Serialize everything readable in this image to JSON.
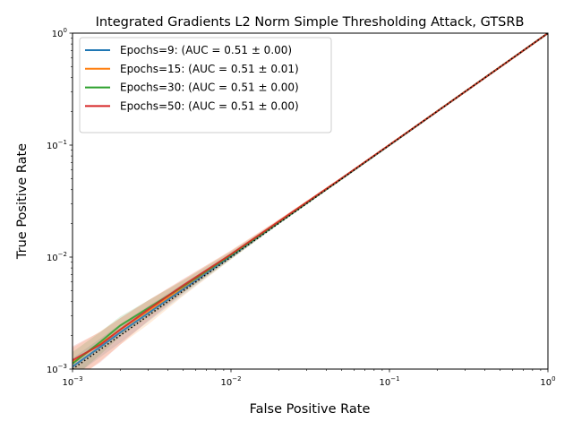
{
  "chart_data": {
    "type": "line",
    "title": "Integrated Gradients L2 Norm Simple Thresholding Attack, GTSRB",
    "xlabel": "False Positive Rate",
    "ylabel": "True Positive Rate",
    "xscale": "log",
    "yscale": "log",
    "xlim": [
      0.001,
      1
    ],
    "ylim": [
      0.001,
      1
    ],
    "x_ticks": [
      {
        "value": 0.001,
        "base": "10",
        "exp": "−3"
      },
      {
        "value": 0.01,
        "base": "10",
        "exp": "−2"
      },
      {
        "value": 0.1,
        "base": "10",
        "exp": "−1"
      },
      {
        "value": 1,
        "base": "10",
        "exp": "0"
      }
    ],
    "y_ticks": [
      {
        "value": 0.001,
        "base": "10",
        "exp": "−3"
      },
      {
        "value": 0.01,
        "base": "10",
        "exp": "−2"
      },
      {
        "value": 0.1,
        "base": "10",
        "exp": "−1"
      },
      {
        "value": 1,
        "base": "10",
        "exp": "0"
      }
    ],
    "legend_position": "top-left",
    "chance_line": {
      "style": "dotted",
      "color": "#000000",
      "x": [
        0.001,
        1
      ],
      "y": [
        0.001,
        1
      ]
    },
    "series": [
      {
        "name": "Epochs=9: (AUC = 0.51 ± 0.00)",
        "color": "#1f77b4",
        "x": [
          0.001,
          0.0015,
          0.002,
          0.003,
          0.005,
          0.01,
          0.02,
          0.05,
          0.1,
          0.2,
          0.5,
          1
        ],
        "y": [
          0.00105,
          0.00158,
          0.00212,
          0.00315,
          0.0052,
          0.0102,
          0.0203,
          0.0502,
          0.1,
          0.2,
          0.5,
          1
        ],
        "band": [
          0.0002,
          0.0003,
          0.0004,
          0.0005,
          0.0006,
          0.0006,
          0.0006,
          0.001,
          0.0015,
          0.002,
          0.003,
          0.0
        ]
      },
      {
        "name": "Epochs=15: (AUC = 0.51 ± 0.01)",
        "color": "#ff7f0e",
        "x": [
          0.001,
          0.0015,
          0.002,
          0.003,
          0.005,
          0.01,
          0.02,
          0.05,
          0.1,
          0.2,
          0.5,
          1
        ],
        "y": [
          0.00115,
          0.00168,
          0.00225,
          0.0033,
          0.0054,
          0.0105,
          0.0207,
          0.0505,
          0.1005,
          0.2005,
          0.5,
          1
        ],
        "band": [
          0.0004,
          0.0005,
          0.0006,
          0.0008,
          0.0009,
          0.001,
          0.001,
          0.0015,
          0.002,
          0.003,
          0.004,
          0.0
        ]
      },
      {
        "name": "Epochs=30: (AUC = 0.51 ± 0.00)",
        "color": "#2ca02c",
        "x": [
          0.001,
          0.0015,
          0.002,
          0.003,
          0.005,
          0.01,
          0.02,
          0.05,
          0.1,
          0.2,
          0.5,
          1
        ],
        "y": [
          0.00112,
          0.00175,
          0.00245,
          0.0035,
          0.0055,
          0.0104,
          0.0204,
          0.0503,
          0.1002,
          0.2002,
          0.5,
          1
        ],
        "band": [
          0.0003,
          0.0004,
          0.0005,
          0.0006,
          0.0007,
          0.0008,
          0.0008,
          0.001,
          0.0015,
          0.002,
          0.003,
          0.0
        ]
      },
      {
        "name": "Epochs=50: (AUC = 0.51 ± 0.00)",
        "color": "#d62728",
        "x": [
          0.001,
          0.0015,
          0.002,
          0.003,
          0.005,
          0.01,
          0.02,
          0.05,
          0.1,
          0.2,
          0.5,
          1
        ],
        "y": [
          0.0012,
          0.00165,
          0.00225,
          0.0034,
          0.0056,
          0.0106,
          0.0208,
          0.0506,
          0.1005,
          0.2003,
          0.5,
          1
        ],
        "band": [
          0.0004,
          0.0005,
          0.0006,
          0.0007,
          0.0008,
          0.0008,
          0.0008,
          0.001,
          0.0015,
          0.002,
          0.003,
          0.0
        ]
      }
    ]
  }
}
